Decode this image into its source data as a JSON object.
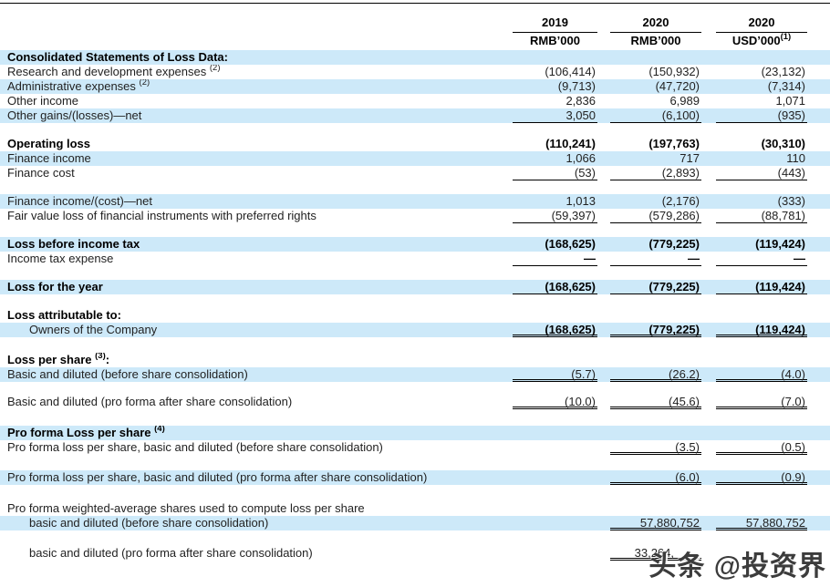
{
  "table": {
    "header": [
      {
        "year": "2019",
        "unit": "RMB’000",
        "unit_sup": ""
      },
      {
        "year": "2020",
        "unit": "RMB’000",
        "unit_sup": ""
      },
      {
        "year": "2020",
        "unit": "USD’000",
        "unit_sup": "(1)"
      }
    ],
    "rows": [
      {
        "label": "Consolidated Statements of Loss Data:",
        "bold": true,
        "hl": true
      },
      {
        "label": "Research and development expenses",
        "sup": "(2)",
        "values": [
          "(106,414)",
          "(150,932)",
          "(23,132)"
        ]
      },
      {
        "label": "Administrative expenses",
        "sup": "(2)",
        "hl": true,
        "values": [
          "(9,713)",
          "(47,720)",
          "(7,314)"
        ]
      },
      {
        "label": "Other income",
        "values": [
          "2,836",
          "6,989",
          "1,071"
        ]
      },
      {
        "label": "Other gains/(losses)—net",
        "hl": true,
        "values": [
          "3,050",
          "(6,100)",
          "(935)"
        ],
        "underline": "single",
        "ucols": [
          0,
          1,
          2
        ]
      },
      {
        "spacer": true,
        "h": 15
      },
      {
        "label": "Operating loss",
        "bold": true,
        "bold_values": true,
        "values": [
          "(110,241)",
          "(197,763)",
          "(30,310)"
        ]
      },
      {
        "label": "Finance income",
        "hl": true,
        "values": [
          "1,066",
          "717",
          "110"
        ]
      },
      {
        "label": "Finance cost",
        "values": [
          "(53)",
          "(2,893)",
          "(443)"
        ],
        "underline": "single",
        "ucols": [
          0,
          1,
          2
        ]
      },
      {
        "spacer": true,
        "h": 15
      },
      {
        "label": "Finance income/(cost)—net",
        "hl": true,
        "values": [
          "1,013",
          "(2,176)",
          "(333)"
        ]
      },
      {
        "label": "Fair value loss of financial instruments with preferred rights",
        "values": [
          "(59,397)",
          "(579,286)",
          "(88,781)"
        ],
        "underline": "single",
        "ucols": [
          0,
          1,
          2
        ]
      },
      {
        "spacer": true,
        "h": 15
      },
      {
        "label": "Loss before income tax",
        "bold": true,
        "bold_values": true,
        "hl": true,
        "values": [
          "(168,625)",
          "(779,225)",
          "(119,424)"
        ]
      },
      {
        "label": "Income tax expense",
        "bold_values": true,
        "values": [
          "—",
          "—",
          "—"
        ],
        "underline": "single",
        "ucols": [
          0,
          1,
          2
        ]
      },
      {
        "spacer": true,
        "h": 15
      },
      {
        "label": "Loss for the year",
        "bold": true,
        "bold_values": true,
        "hl": true,
        "values": [
          "(168,625)",
          "(779,225)",
          "(119,424)"
        ],
        "underline": "single",
        "ucols": [
          0,
          1,
          2
        ]
      },
      {
        "spacer": true,
        "h": 15
      },
      {
        "label": "Loss attributable to:",
        "bold": true
      },
      {
        "label": "Owners of the Company",
        "indent": 24,
        "hl": true,
        "bold_values": true,
        "values": [
          "(168,625)",
          "(779,225)",
          "(119,424)"
        ],
        "underline": "double",
        "ucols": [
          0,
          1,
          2
        ]
      },
      {
        "spacer": true,
        "h": 17
      },
      {
        "label": "Loss per share",
        "sup": "(3)",
        "tail": ":",
        "bold": true
      },
      {
        "label": "Basic and diluted (before share consolidation)",
        "hl": true,
        "values": [
          "(5.7)",
          "(26.2)",
          "(4.0)"
        ],
        "underline": "double",
        "ucols": [
          0,
          1,
          2
        ]
      },
      {
        "spacer": true,
        "h": 14
      },
      {
        "label": "Basic and diluted (pro forma after share consolidation)",
        "values": [
          "(10.0)",
          "(45.6)",
          "(7.0)"
        ],
        "underline": "double",
        "ucols": [
          0,
          1,
          2
        ]
      },
      {
        "spacer": true,
        "h": 18
      },
      {
        "label": "Pro forma Loss per share",
        "sup": "(4)",
        "bold": true,
        "hl": true
      },
      {
        "label": "Pro forma loss per share, basic and diluted (before share consolidation)",
        "values": [
          "",
          "(3.5)",
          "(0.5)"
        ],
        "underline": "double",
        "ucols": [
          1,
          2
        ]
      },
      {
        "spacer": true,
        "h": 17
      },
      {
        "label": "Pro forma loss per share, basic and diluted (pro forma after share consolidation)",
        "hl": true,
        "values": [
          "",
          "(6.0)",
          "(0.9)"
        ],
        "underline": "double",
        "ucols": [
          1,
          2
        ]
      },
      {
        "spacer": true,
        "h": 18
      },
      {
        "label": "Pro forma weighted-average shares used to compute loss per share"
      },
      {
        "label": "basic and diluted (before share consolidation)",
        "indent": 24,
        "hl": true,
        "values": [
          "",
          "57,880,752",
          "57,880,752"
        ],
        "underline": "double",
        "ucols": [
          1,
          2
        ]
      },
      {
        "spacer": true,
        "h": 17
      },
      {
        "label": "basic and diluted (pro forma after share consolidation)",
        "indent": 24,
        "values": [
          "",
          "33,264,",
          ""
        ],
        "underline": "double",
        "ucols": [
          1
        ],
        "pad": true
      }
    ]
  },
  "watermark": {
    "text": "头条 @投资界"
  }
}
